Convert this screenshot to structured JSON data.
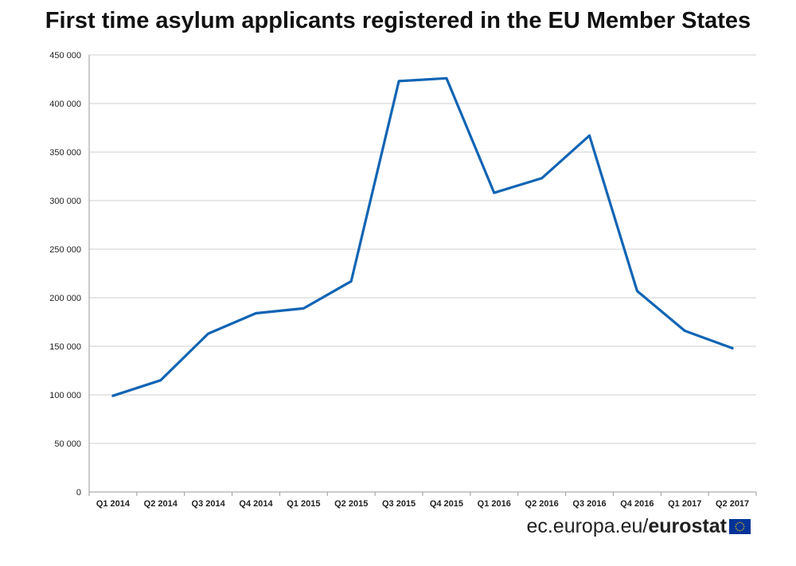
{
  "chart_data": {
    "type": "line",
    "title": "First time asylum applicants registered in the EU Member States",
    "xlabel": "",
    "ylabel": "",
    "categories": [
      "Q1 2014",
      "Q2 2014",
      "Q3 2014",
      "Q4 2014",
      "Q1 2015",
      "Q2 2015",
      "Q3 2015",
      "Q4 2015",
      "Q1 2016",
      "Q2 2016",
      "Q3 2016",
      "Q4 2016",
      "Q1 2017",
      "Q2 2017"
    ],
    "series": [
      {
        "values": [
          99000,
          115000,
          163000,
          184000,
          189000,
          217000,
          423000,
          426000,
          308000,
          323000,
          367000,
          207000,
          166000,
          148000
        ]
      }
    ],
    "ylim": [
      0,
      450000
    ],
    "yticks": [
      0,
      50000,
      100000,
      150000,
      200000,
      250000,
      300000,
      350000,
      400000,
      450000
    ],
    "ytick_labels": [
      "0",
      "50 000",
      "100 000",
      "150 000",
      "200 000",
      "250 000",
      "300 000",
      "350 000",
      "400 000",
      "450 000"
    ],
    "grid": true,
    "line_color": "#1064b4"
  },
  "footer": {
    "source_plain": "ec.europa.eu/",
    "source_bold": "eurostat"
  },
  "colors": {
    "flag": "#003399",
    "flag_stars": "#ffcc00"
  }
}
